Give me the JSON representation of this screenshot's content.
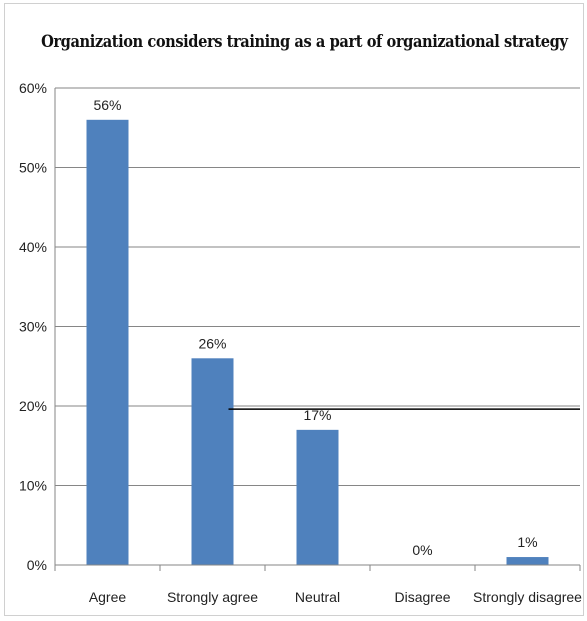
{
  "chart_data": {
    "type": "bar",
    "title": "Organization considers training as a part of organizational strategy",
    "categories": [
      "Agree",
      "Strongly agree",
      "Neutral",
      "Disagree",
      "Strongly disagree"
    ],
    "values": [
      56,
      26,
      17,
      0,
      1
    ],
    "data_labels": [
      "56%",
      "26%",
      "17%",
      "0%",
      "1%"
    ],
    "y_ticks": [
      "0%",
      "10%",
      "20%",
      "30%",
      "40%",
      "50%",
      "60%"
    ],
    "ylim": [
      0,
      60
    ],
    "grid": true,
    "legend": "none",
    "reference_line_value": 19.6,
    "colors": {
      "bar": "#4F81BD",
      "grid": "#868686",
      "axis": "#868686",
      "reference_line": "#000000"
    }
  }
}
